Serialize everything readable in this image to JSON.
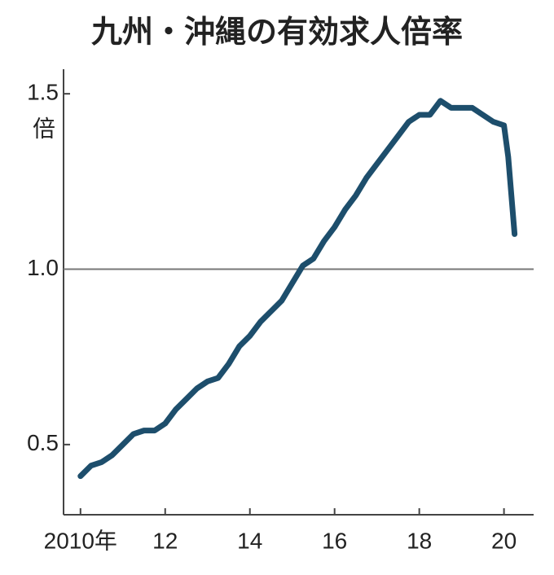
{
  "chart_data": {
    "type": "line",
    "title": "九州・沖縄の有効求人倍率",
    "y_unit": "倍",
    "x": [
      2010.0,
      2010.25,
      2010.5,
      2010.75,
      2011.0,
      2011.25,
      2011.5,
      2011.75,
      2012.0,
      2012.25,
      2012.5,
      2012.75,
      2013.0,
      2013.25,
      2013.5,
      2013.75,
      2014.0,
      2014.25,
      2014.5,
      2014.75,
      2015.0,
      2015.25,
      2015.5,
      2015.75,
      2016.0,
      2016.25,
      2016.5,
      2016.75,
      2017.0,
      2017.25,
      2017.5,
      2017.75,
      2018.0,
      2018.25,
      2018.5,
      2018.75,
      2019.0,
      2019.25,
      2019.5,
      2019.75,
      2020.0,
      2020.1,
      2020.25
    ],
    "series": [
      {
        "name": "有効求人倍率",
        "color": "#1d4e6c",
        "values": [
          0.41,
          0.44,
          0.45,
          0.47,
          0.5,
          0.53,
          0.54,
          0.54,
          0.56,
          0.6,
          0.63,
          0.66,
          0.68,
          0.69,
          0.73,
          0.78,
          0.81,
          0.85,
          0.88,
          0.91,
          0.96,
          1.01,
          1.03,
          1.08,
          1.12,
          1.17,
          1.21,
          1.26,
          1.3,
          1.34,
          1.38,
          1.42,
          1.44,
          1.44,
          1.48,
          1.46,
          1.46,
          1.46,
          1.44,
          1.42,
          1.41,
          1.32,
          1.1
        ]
      }
    ],
    "xlim": [
      2009.6,
      2020.7
    ],
    "xticks": [
      {
        "value": 2010,
        "label": "2010年"
      },
      {
        "value": 2012,
        "label": "12"
      },
      {
        "value": 2014,
        "label": "14"
      },
      {
        "value": 2016,
        "label": "16"
      },
      {
        "value": 2018,
        "label": "18"
      },
      {
        "value": 2020,
        "label": "20"
      }
    ],
    "ylim": [
      0.3,
      1.57
    ],
    "yticks": [
      0.5,
      {
        "value": 1,
        "label": "1.0"
      },
      1.5
    ],
    "reference_line": 1
  }
}
